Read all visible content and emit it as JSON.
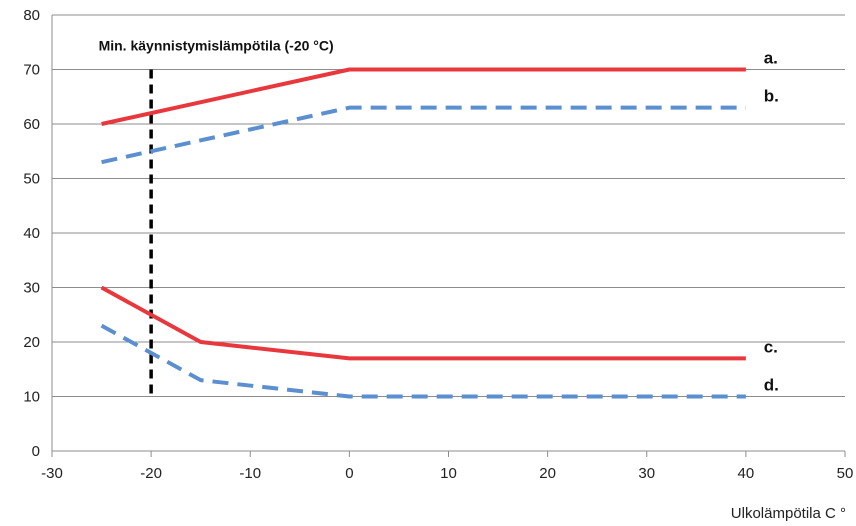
{
  "chart_data": {
    "type": "line",
    "title": "",
    "xlabel": "Ulkolämpötila C °",
    "ylabel": "",
    "xlim": [
      -30,
      50
    ],
    "ylim": [
      0,
      80
    ],
    "xticks": [
      "-30",
      "-20",
      "-10",
      "0",
      "10",
      "20",
      "30",
      "40",
      "50"
    ],
    "yticks": [
      "0",
      "10",
      "20",
      "30",
      "40",
      "50",
      "60",
      "70",
      "80"
    ],
    "grid": "horizontal",
    "series": [
      {
        "name": "a.",
        "style": "solid",
        "color": "#e8383d",
        "x": [
          -25,
          0,
          40
        ],
        "y": [
          60,
          70,
          70
        ]
      },
      {
        "name": "b.",
        "style": "dashed",
        "color": "#5b8fd0",
        "x": [
          -25,
          -15,
          0,
          40
        ],
        "y": [
          53,
          57,
          63,
          63
        ]
      },
      {
        "name": "c.",
        "style": "solid",
        "color": "#e8383d",
        "x": [
          -25,
          -15,
          0,
          40
        ],
        "y": [
          30,
          20,
          17,
          17
        ]
      },
      {
        "name": "d.",
        "style": "dashed",
        "color": "#5b8fd0",
        "x": [
          -25,
          -15,
          0,
          40
        ],
        "y": [
          23,
          13,
          10,
          10
        ]
      }
    ],
    "annotations": [
      {
        "label": "Min. käynnistymislämpötila (-20 °C)",
        "x": -20,
        "y_range": [
          10,
          70
        ],
        "style": "dashed",
        "color": "#000000"
      }
    ]
  }
}
